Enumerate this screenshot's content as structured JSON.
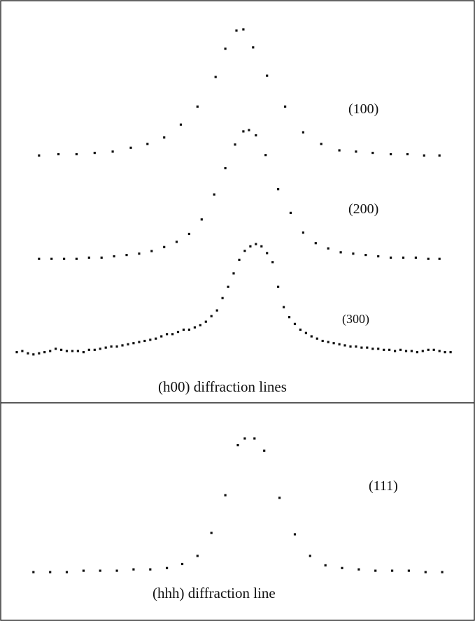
{
  "chart_data": [
    {
      "type": "scatter",
      "title": "",
      "caption": "(h00) diffraction lines",
      "series": [
        {
          "name": "(100)",
          "points": [
            [
              -14.2,
              0.02
            ],
            [
              -12.8,
              0.03
            ],
            [
              -11.5,
              0.03
            ],
            [
              -10.2,
              0.04
            ],
            [
              -8.9,
              0.05
            ],
            [
              -7.6,
              0.08
            ],
            [
              -6.4,
              0.11
            ],
            [
              -5.2,
              0.16
            ],
            [
              -4.0,
              0.26
            ],
            [
              -2.8,
              0.4
            ],
            [
              -1.5,
              0.63
            ],
            [
              -0.8,
              0.85
            ],
            [
              0,
              0.99
            ],
            [
              0.5,
              1.0
            ],
            [
              1.2,
              0.86
            ],
            [
              2.2,
              0.64
            ],
            [
              3.5,
              0.4
            ],
            [
              4.8,
              0.2
            ],
            [
              6.1,
              0.11
            ],
            [
              7.4,
              0.06
            ],
            [
              8.6,
              0.05
            ],
            [
              9.8,
              0.04
            ],
            [
              11.1,
              0.03
            ],
            [
              12.3,
              0.03
            ],
            [
              13.5,
              0.02
            ],
            [
              14.6,
              0.02
            ]
          ]
        },
        {
          "name": "(200)",
          "points": [
            [
              -14.2,
              0.02
            ],
            [
              -13.3,
              0.02
            ],
            [
              -12.4,
              0.02
            ],
            [
              -11.5,
              0.02
            ],
            [
              -10.6,
              0.03
            ],
            [
              -9.7,
              0.03
            ],
            [
              -8.8,
              0.04
            ],
            [
              -7.9,
              0.05
            ],
            [
              -7.0,
              0.06
            ],
            [
              -6.1,
              0.08
            ],
            [
              -5.2,
              0.11
            ],
            [
              -4.3,
              0.15
            ],
            [
              -3.4,
              0.21
            ],
            [
              -2.5,
              0.32
            ],
            [
              -1.6,
              0.51
            ],
            [
              -0.8,
              0.71
            ],
            [
              -0.1,
              0.89
            ],
            [
              0.5,
              0.99
            ],
            [
              0.9,
              1.0
            ],
            [
              1.4,
              0.96
            ],
            [
              2.1,
              0.81
            ],
            [
              3.0,
              0.55
            ],
            [
              3.9,
              0.37
            ],
            [
              4.8,
              0.22
            ],
            [
              5.7,
              0.14
            ],
            [
              6.6,
              0.1
            ],
            [
              7.5,
              0.07
            ],
            [
              8.4,
              0.06
            ],
            [
              9.3,
              0.05
            ],
            [
              10.2,
              0.04
            ],
            [
              11.1,
              0.03
            ],
            [
              12.0,
              0.03
            ],
            [
              12.9,
              0.03
            ],
            [
              13.8,
              0.02
            ],
            [
              14.6,
              0.02
            ]
          ]
        },
        {
          "name": "(300)",
          "points": [
            [
              -15.8,
              0.04
            ],
            [
              -15.4,
              0.05
            ],
            [
              -15.0,
              0.03
            ],
            [
              -14.6,
              0.02
            ],
            [
              -14.2,
              0.03
            ],
            [
              -13.8,
              0.04
            ],
            [
              -13.4,
              0.05
            ],
            [
              -13.0,
              0.07
            ],
            [
              -12.6,
              0.06
            ],
            [
              -12.2,
              0.05
            ],
            [
              -11.8,
              0.05
            ],
            [
              -11.4,
              0.05
            ],
            [
              -11.0,
              0.04
            ],
            [
              -10.6,
              0.06
            ],
            [
              -10.2,
              0.06
            ],
            [
              -9.8,
              0.07
            ],
            [
              -9.4,
              0.08
            ],
            [
              -9.0,
              0.09
            ],
            [
              -8.6,
              0.09
            ],
            [
              -8.2,
              0.1
            ],
            [
              -7.8,
              0.11
            ],
            [
              -7.4,
              0.12
            ],
            [
              -7.0,
              0.13
            ],
            [
              -6.6,
              0.14
            ],
            [
              -6.2,
              0.15
            ],
            [
              -5.8,
              0.16
            ],
            [
              -5.4,
              0.18
            ],
            [
              -5.0,
              0.2
            ],
            [
              -4.6,
              0.2
            ],
            [
              -4.2,
              0.22
            ],
            [
              -3.8,
              0.24
            ],
            [
              -3.4,
              0.24
            ],
            [
              -3.0,
              0.26
            ],
            [
              -2.6,
              0.28
            ],
            [
              -2.2,
              0.31
            ],
            [
              -1.8,
              0.36
            ],
            [
              -1.4,
              0.41
            ],
            [
              -1.0,
              0.52
            ],
            [
              -0.6,
              0.62
            ],
            [
              -0.2,
              0.74
            ],
            [
              0.2,
              0.86
            ],
            [
              0.6,
              0.94
            ],
            [
              1.0,
              0.98
            ],
            [
              1.4,
              1.0
            ],
            [
              1.8,
              0.98
            ],
            [
              2.2,
              0.92
            ],
            [
              2.6,
              0.84
            ],
            [
              3.0,
              0.62
            ],
            [
              3.4,
              0.44
            ],
            [
              3.8,
              0.35
            ],
            [
              4.2,
              0.29
            ],
            [
              4.6,
              0.24
            ],
            [
              5.0,
              0.21
            ],
            [
              5.4,
              0.18
            ],
            [
              5.8,
              0.16
            ],
            [
              6.2,
              0.14
            ],
            [
              6.6,
              0.13
            ],
            [
              7.0,
              0.12
            ],
            [
              7.4,
              0.11
            ],
            [
              7.8,
              0.1
            ],
            [
              8.2,
              0.09
            ],
            [
              8.6,
              0.09
            ],
            [
              9.0,
              0.08
            ],
            [
              9.4,
              0.08
            ],
            [
              9.8,
              0.07
            ],
            [
              10.2,
              0.07
            ],
            [
              10.6,
              0.06
            ],
            [
              11.0,
              0.06
            ],
            [
              11.4,
              0.05
            ],
            [
              11.8,
              0.06
            ],
            [
              12.2,
              0.05
            ],
            [
              12.6,
              0.05
            ],
            [
              13.0,
              0.04
            ],
            [
              13.4,
              0.05
            ],
            [
              13.8,
              0.06
            ],
            [
              14.2,
              0.06
            ],
            [
              14.6,
              0.05
            ],
            [
              15.0,
              0.04
            ],
            [
              15.4,
              0.04
            ]
          ]
        }
      ],
      "xlim": [
        -16,
        16
      ],
      "ylim": [
        0,
        1
      ],
      "grid": false
    },
    {
      "type": "scatter",
      "title": "",
      "caption": "(hhh) diffraction line",
      "series": [
        {
          "name": "(111)",
          "points": [
            [
              -14.6,
              0.01
            ],
            [
              -13.4,
              0.01
            ],
            [
              -12.2,
              0.01
            ],
            [
              -11.0,
              0.02
            ],
            [
              -9.8,
              0.02
            ],
            [
              -8.6,
              0.02
            ],
            [
              -7.4,
              0.03
            ],
            [
              -6.2,
              0.03
            ],
            [
              -5.0,
              0.04
            ],
            [
              -3.9,
              0.07
            ],
            [
              -2.8,
              0.13
            ],
            [
              -1.8,
              0.3
            ],
            [
              -0.8,
              0.58
            ],
            [
              0.1,
              0.95
            ],
            [
              0.6,
              1.0
            ],
            [
              1.3,
              1.0
            ],
            [
              2.0,
              0.91
            ],
            [
              3.1,
              0.56
            ],
            [
              4.2,
              0.29
            ],
            [
              5.3,
              0.13
            ],
            [
              6.4,
              0.06
            ],
            [
              7.6,
              0.04
            ],
            [
              8.8,
              0.03
            ],
            [
              10.0,
              0.02
            ],
            [
              11.2,
              0.02
            ],
            [
              12.4,
              0.02
            ],
            [
              13.6,
              0.01
            ],
            [
              14.8,
              0.01
            ]
          ]
        }
      ],
      "xlim": [
        -16,
        16
      ],
      "ylim": [
        0,
        1
      ],
      "grid": false
    }
  ]
}
